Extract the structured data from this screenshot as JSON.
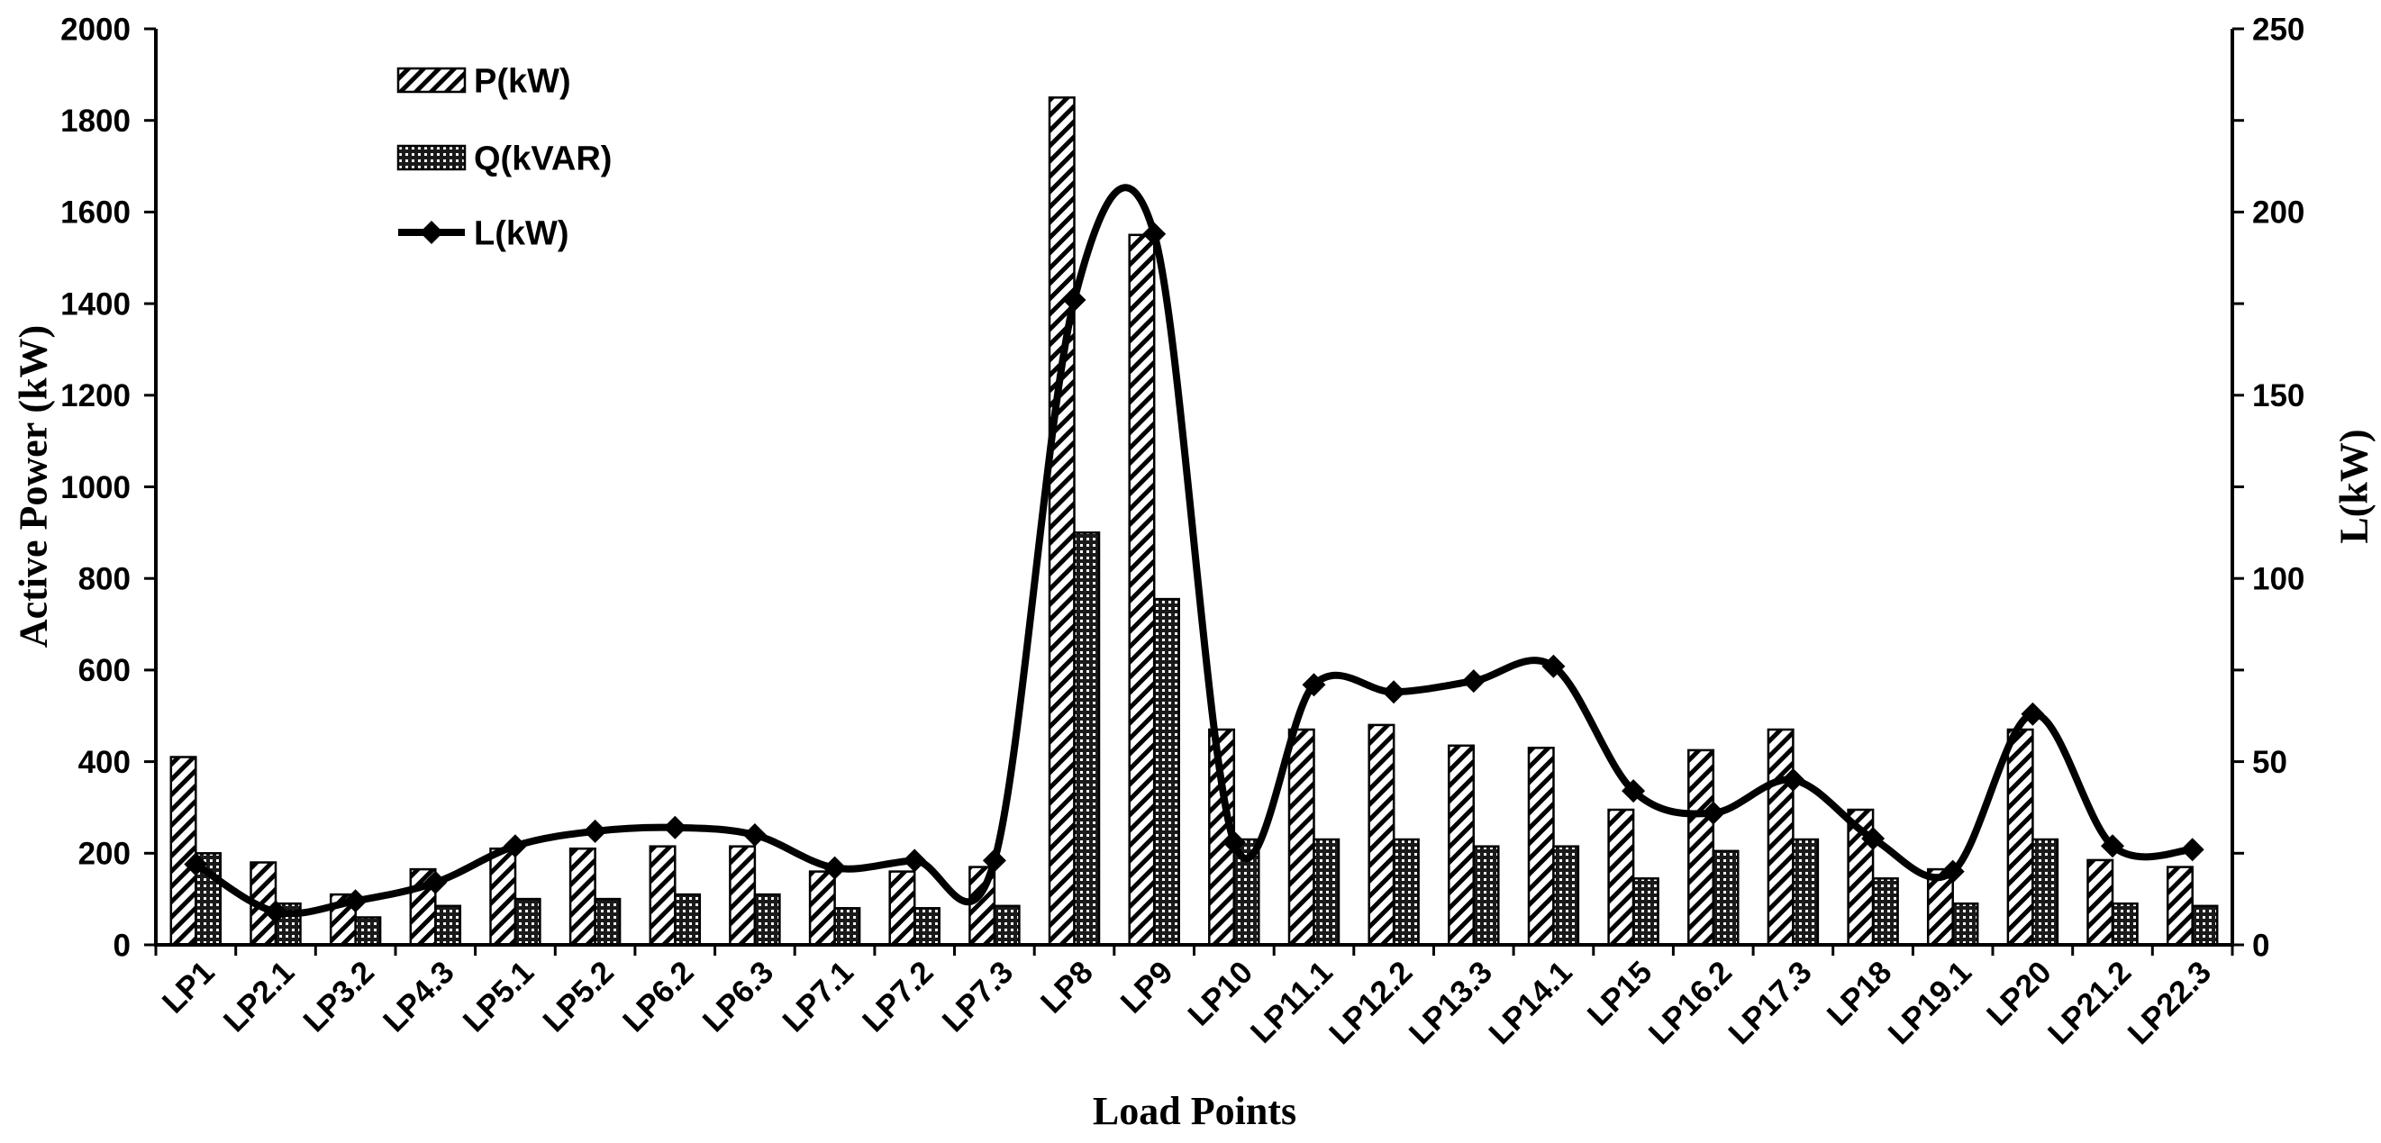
{
  "chart_data": {
    "type": "bar",
    "categories": [
      "LP1",
      "LP2.1",
      "LP3.2",
      "LP4.3",
      "LP5.1",
      "LP5.2",
      "LP6.2",
      "LP6.3",
      "LP7.1",
      "LP7.2",
      "LP7.3",
      "LP8",
      "LP9",
      "LP10",
      "LP11.1",
      "LP12.2",
      "LP13.3",
      "LP14.1",
      "LP15",
      "LP16.2",
      "LP17.3",
      "LP18",
      "LP19.1",
      "LP20",
      "LP21.2",
      "LP22.3"
    ],
    "series": [
      {
        "name": "P(kW)",
        "type": "bar",
        "y2": false,
        "pattern": "hatch-diagonal",
        "values": [
          410,
          180,
          110,
          165,
          210,
          210,
          215,
          215,
          160,
          160,
          170,
          1850,
          1550,
          470,
          470,
          480,
          435,
          430,
          295,
          425,
          470,
          295,
          165,
          470,
          185,
          170
        ]
      },
      {
        "name": "Q(kVAR)",
        "type": "bar",
        "y2": false,
        "pattern": "dots",
        "values": [
          200,
          90,
          60,
          85,
          100,
          100,
          110,
          110,
          80,
          80,
          85,
          900,
          755,
          230,
          230,
          230,
          215,
          215,
          145,
          205,
          230,
          145,
          90,
          230,
          90,
          85
        ]
      },
      {
        "name": "L(kW)",
        "type": "line",
        "y2": true,
        "marker": "diamond",
        "smooth": true,
        "values": [
          22,
          9,
          12,
          17,
          27,
          31,
          32,
          30,
          21,
          23,
          23,
          176,
          194,
          28,
          71,
          69,
          72,
          76,
          42,
          36,
          45,
          29,
          20,
          63,
          27,
          26
        ]
      }
    ],
    "xlabel": "Load Points",
    "ylabel": "Active Power (kW)",
    "y2label": "L(kW)",
    "ylim": [
      0,
      2000
    ],
    "y2lim": [
      0,
      250
    ],
    "yticks": [
      "0",
      "200",
      "400",
      "600",
      "800",
      "1000",
      "1200",
      "1400",
      "1600",
      "1800",
      "2000"
    ],
    "y2ticks": [
      "0",
      "50",
      "100",
      "150",
      "200",
      "250"
    ],
    "grid": false,
    "legend": "top-left",
    "colors": {
      "outline": "#000000",
      "line": "#000000",
      "background": "#ffffff"
    }
  }
}
